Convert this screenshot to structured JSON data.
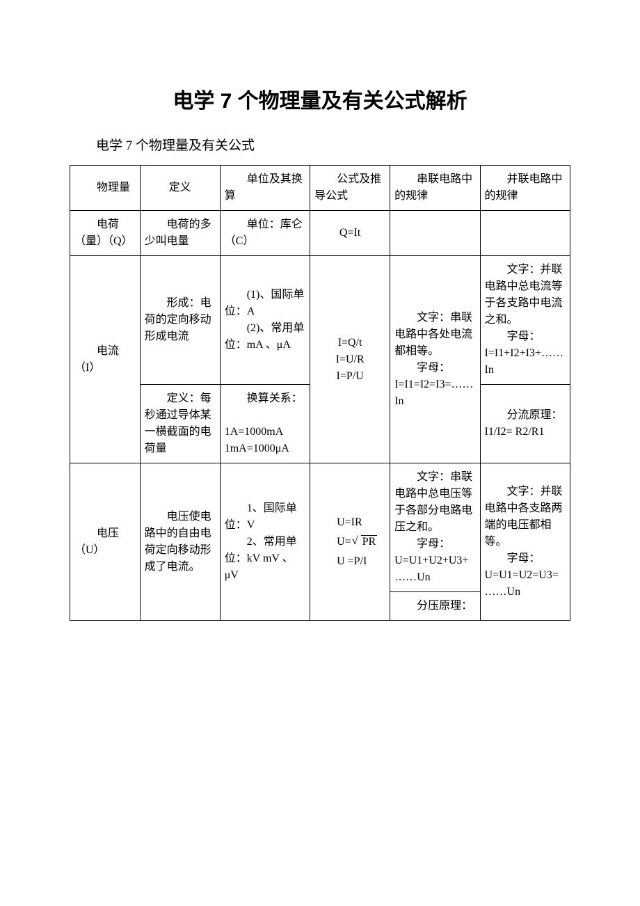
{
  "title": "电学 7 个物理量及有关公式解析",
  "subtitle": "电学 7 个物理量及有关公式",
  "header": {
    "c1": "　　物理量",
    "c2": "定义",
    "c3": "　　单位及其换算",
    "c4": "　　公式及推导公式",
    "c5": "　　串联电路中的规律",
    "c6": "　　并联电路中的规律"
  },
  "row_charge": {
    "c1": "　　电荷（量）（Q）",
    "c2": "　　电荷的多少叫电量",
    "c3": "　　单位：库仑（C）",
    "c4": "Q=It"
  },
  "row_current": {
    "c1": "　　电流（I）",
    "c2a": "　　形成：电荷的定向移动形成电流",
    "c2b": "　　定义：每秒通过导体某一横截面的电荷量",
    "c3a": "　　(1)、国际单位：A\n　　(2)、常用单位：mA 、μA",
    "c3b": "　　换算关系：\n　　1A=1000mA 1mA=1000μA",
    "c4": "I=Q/t\nI=U/R\nI=P/U",
    "c5": "　　文字：串联电路中各处电流都相等。\n　　字母：I=I1=I2=I3=……In",
    "c6a": "　　文字：并联电路中总电流等于各支路中电流之和。\n　　字母：I=I1+I2+I3+……In",
    "c6b": "　　分流原理：I1/I2= R2/R1"
  },
  "row_voltage": {
    "c1": "　　电压（U）",
    "c2": "　　电压使电路中的自由电荷定向移动形成了电流。",
    "c3": "　　1、国际单位：V\n　　2、常用单位：kV mV 、μV",
    "c4_a": "　　U=IR",
    "c4_b": "　　U=",
    "c4_c": "PR",
    "c4_d": "　　U =P/I",
    "c5a": "　　文字：串联电路中总电压等于各部分电路电压之和。\n　　字母：U=U1+U2+U3+……Un",
    "c5b": "　　分压原理：",
    "c6": "　　文字：并联电路中各支路两端的电压都相等。\n　　字母：U=U1=U2=U3=……Un"
  }
}
